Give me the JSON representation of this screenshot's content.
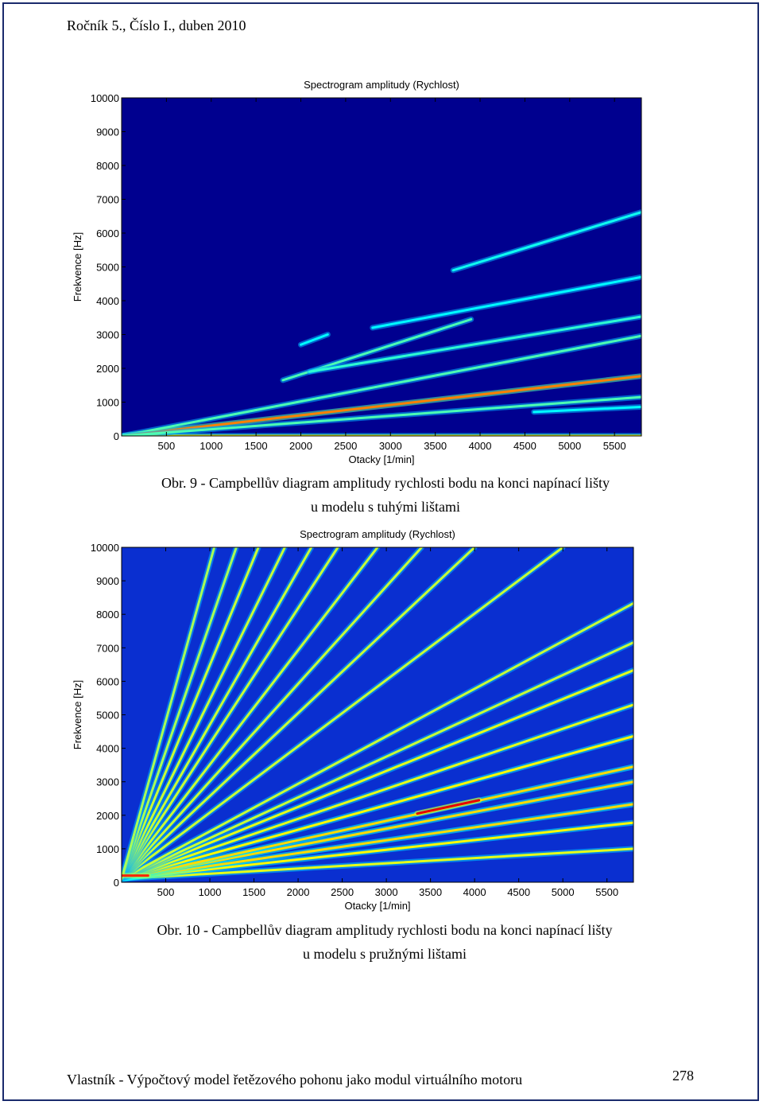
{
  "header": {
    "text": "Ročník 5., Číslo I., duben 2010"
  },
  "figures": [
    {
      "caption_line1": "Obr. 9 - Campbellův diagram amplitudy rychlosti bodu na konci napínací lišty",
      "caption_line2": "u modelu s tuhými lištami",
      "chart_data": {
        "type": "heatmap",
        "title": "Spectrogram amplitudy (Rychlost)",
        "xlabel": "Otacky [1/min]",
        "ylabel": "Frekvence [Hz]",
        "xlim": [
          0,
          5800
        ],
        "ylim": [
          0,
          10000
        ],
        "xticks": [
          500,
          1000,
          1500,
          2000,
          2500,
          3000,
          3500,
          4000,
          4500,
          5000,
          5500
        ],
        "yticks": [
          0,
          1000,
          2000,
          3000,
          4000,
          5000,
          6000,
          7000,
          8000,
          9000,
          10000
        ],
        "colormap": "jet",
        "background_color": "#00008f",
        "series": [
          {
            "x": [
              0,
              5800
            ],
            "y": [
              0,
              0
            ],
            "intensity": 0.55
          },
          {
            "x": [
              0,
              5800
            ],
            "y": [
              0,
              2960
            ],
            "intensity": 0.25
          },
          {
            "x": [
              0,
              5800
            ],
            "y": [
              0,
              1770
            ],
            "intensity": 0.75
          },
          {
            "x": [
              0,
              5800
            ],
            "y": [
              0,
              1150
            ],
            "intensity": 0.25
          },
          {
            "x": [
              1800,
              3900
            ],
            "y": [
              1650,
              3450
            ],
            "intensity": 0.25
          },
          {
            "x": [
              2100,
              5800
            ],
            "y": [
              1900,
              3530
            ],
            "intensity": 0.2
          },
          {
            "x": [
              2800,
              5800
            ],
            "y": [
              3200,
              4700
            ],
            "intensity": 0.12
          },
          {
            "x": [
              3700,
              5800
            ],
            "y": [
              4900,
              6620
            ],
            "intensity": 0.15
          },
          {
            "x": [
              4600,
              5800
            ],
            "y": [
              710,
              860
            ],
            "intensity": 0.12
          },
          {
            "x": [
              2000,
              2300
            ],
            "y": [
              2700,
              3000
            ],
            "intensity": 0.12
          }
        ]
      }
    },
    {
      "caption_line1": "Obr. 10 - Campbellův diagram amplitudy rychlosti bodu na konci napínací lišty",
      "caption_line2": "u modelu s pružnými lištami",
      "chart_data": {
        "type": "heatmap",
        "title": "Spectrogram amplitudy (Rychlost)",
        "xlabel": "Otacky [1/min]",
        "ylabel": "Frekvence [Hz]",
        "xlim": [
          0,
          5800
        ],
        "ylim": [
          0,
          10000
        ],
        "xticks": [
          500,
          1000,
          1500,
          2000,
          2500,
          3000,
          3500,
          4000,
          4500,
          5000,
          5500
        ],
        "yticks": [
          0,
          1000,
          2000,
          3000,
          4000,
          5000,
          6000,
          7000,
          8000,
          9000,
          10000
        ],
        "colormap": "jet",
        "background_color": "#0a2fd0",
        "series": [
          {
            "x": [
              0,
              5800
            ],
            "y": [
              100,
              1000
            ],
            "intensity": 0.5
          },
          {
            "x": [
              0,
              5800
            ],
            "y": [
              100,
              1780
            ],
            "intensity": 0.55
          },
          {
            "x": [
              0,
              5800
            ],
            "y": [
              100,
              2330
            ],
            "intensity": 0.6
          },
          {
            "x": [
              0,
              5800
            ],
            "y": [
              100,
              3000
            ],
            "intensity": 0.6
          },
          {
            "x": [
              0,
              5800
            ],
            "y": [
              100,
              3450
            ],
            "intensity": 0.6
          },
          {
            "x": [
              0,
              5800
            ],
            "y": [
              100,
              4360
            ],
            "intensity": 0.55
          },
          {
            "x": [
              0,
              5800
            ],
            "y": [
              100,
              5300
            ],
            "intensity": 0.5
          },
          {
            "x": [
              0,
              5800
            ],
            "y": [
              100,
              6330
            ],
            "intensity": 0.5
          },
          {
            "x": [
              0,
              5800
            ],
            "y": [
              100,
              7160
            ],
            "intensity": 0.45
          },
          {
            "x": [
              0,
              5800
            ],
            "y": [
              100,
              8330
            ],
            "intensity": 0.45
          },
          {
            "x": [
              0,
              5000
            ],
            "y": [
              100,
              10000
            ],
            "intensity": 0.45
          },
          {
            "x": [
              0,
              4000
            ],
            "y": [
              100,
              10000
            ],
            "intensity": 0.45
          },
          {
            "x": [
              0,
              3400
            ],
            "y": [
              100,
              10000
            ],
            "intensity": 0.45
          },
          {
            "x": [
              0,
              2900
            ],
            "y": [
              100,
              10000
            ],
            "intensity": 0.45
          },
          {
            "x": [
              0,
              2450
            ],
            "y": [
              100,
              10000
            ],
            "intensity": 0.45
          },
          {
            "x": [
              0,
              2150
            ],
            "y": [
              100,
              10000
            ],
            "intensity": 0.45
          },
          {
            "x": [
              0,
              1850
            ],
            "y": [
              100,
              10000
            ],
            "intensity": 0.45
          },
          {
            "x": [
              0,
              1550
            ],
            "y": [
              100,
              10000
            ],
            "intensity": 0.45
          },
          {
            "x": [
              0,
              1300
            ],
            "y": [
              100,
              10000
            ],
            "intensity": 0.4
          },
          {
            "x": [
              0,
              1050
            ],
            "y": [
              100,
              10000
            ],
            "intensity": 0.4
          },
          {
            "x": [
              3350,
              4050
            ],
            "y": [
              2050,
              2450
            ],
            "intensity": 1.0
          },
          {
            "x": [
              0,
              300
            ],
            "y": [
              200,
              200
            ],
            "intensity": 0.9
          }
        ]
      }
    }
  ],
  "footer": {
    "text": "Vlastník - Výpočtový model řetězového pohonu jako modul virtuálního motoru",
    "page_number": "278"
  }
}
